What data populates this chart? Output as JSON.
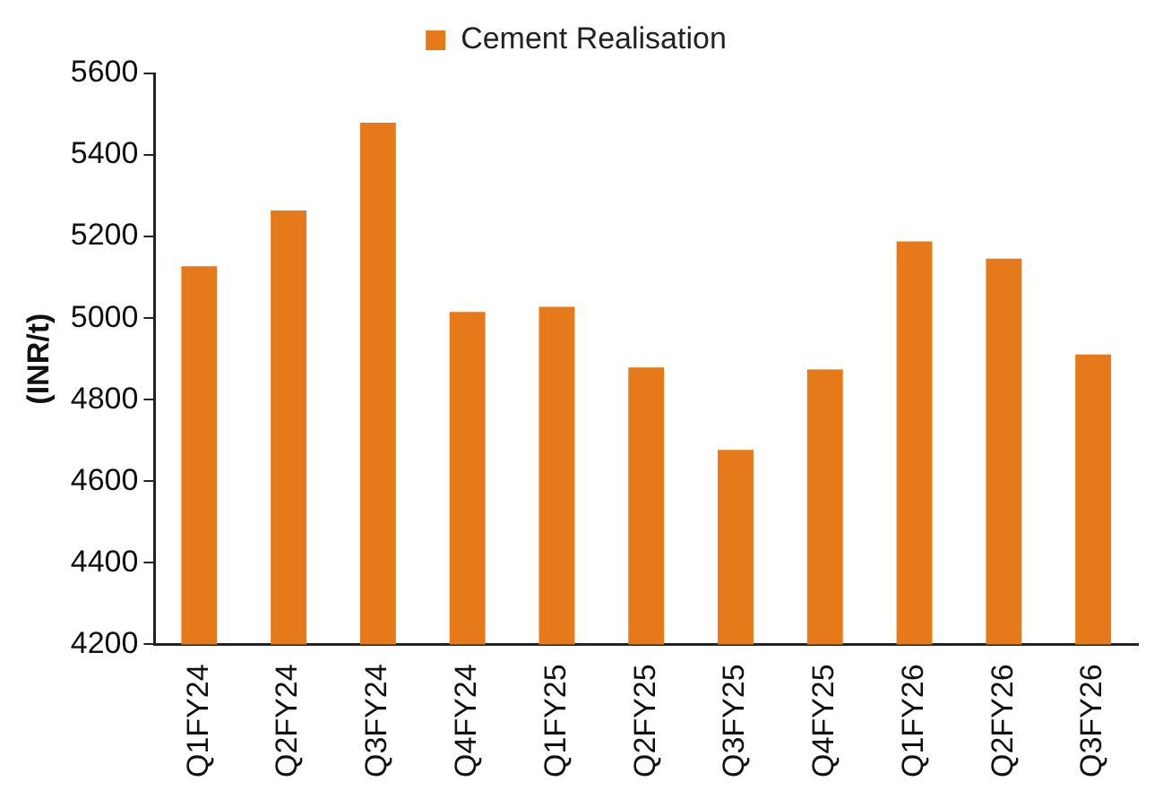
{
  "chart_data": {
    "type": "bar",
    "ylabel": "(INR/t)",
    "categories": [
      "Q1FY24",
      "Q2FY24",
      "Q3FY24",
      "Q4FY24",
      "Q1FY25",
      "Q2FY25",
      "Q3FY25",
      "Q4FY25",
      "Q1FY26",
      "Q2FY26",
      "Q3FY26"
    ],
    "series": [
      {
        "name": "Cement Realisation",
        "color": "#e67a1a",
        "values": [
          5127,
          5264,
          5479,
          5015,
          5028,
          4879,
          4677,
          4874,
          5188,
          5146,
          4911
        ]
      }
    ],
    "ylim": [
      4200,
      5600
    ],
    "yticks": [
      4200,
      4400,
      4600,
      4800,
      5000,
      5200,
      5400,
      5600
    ],
    "grid": false,
    "legend": "top"
  }
}
